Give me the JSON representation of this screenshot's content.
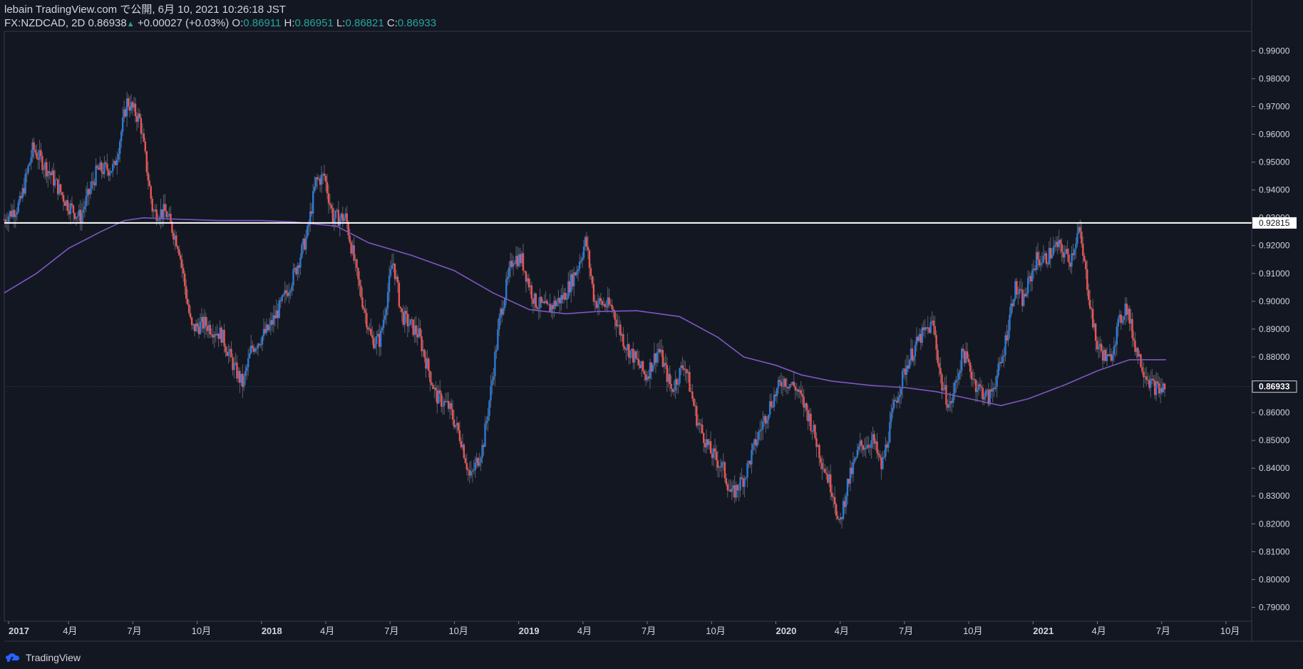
{
  "header": {
    "publisher_line": "lebain TradingView.com で公開, 6月 10, 2021 10:26:18 JST",
    "symbol": "FX:NZDCAD, 2D",
    "last": "0.86938",
    "change": "+0.00027 (+0.03%)",
    "open_label": "O:",
    "open": "0.86911",
    "high_label": "H:",
    "high": "0.86951",
    "low_label": "L:",
    "low": "0.86821",
    "close_label": "C:",
    "close": "0.86933"
  },
  "footer": {
    "brand": "TradingView"
  },
  "colors": {
    "background": "#131722",
    "up": "#2a7ad8",
    "down": "#ef5350",
    "ma": "#7e57c2",
    "hline": "#ffffff",
    "grid": "#2a2e39",
    "text": "#d1d4dc"
  },
  "chart_data": {
    "type": "candlestick",
    "title": "FX:NZDCAD, 2D",
    "ylim": [
      0.785,
      0.997
    ],
    "yticks": [
      "0.99000",
      "0.98000",
      "0.97000",
      "0.96000",
      "0.95000",
      "0.94000",
      "0.93000",
      "0.92000",
      "0.91000",
      "0.90000",
      "0.89000",
      "0.88000",
      "0.87000",
      "0.86000",
      "0.85000",
      "0.84000",
      "0.83000",
      "0.82000",
      "0.81000",
      "0.80000",
      "0.79000"
    ],
    "x_range_months": [
      0.0,
      58.2
    ],
    "xticks": [
      {
        "label": "2017",
        "m": 0.2,
        "bold": true
      },
      {
        "label": "4月",
        "m": 3
      },
      {
        "label": "7月",
        "m": 6
      },
      {
        "label": "10月",
        "m": 9
      },
      {
        "label": "2018",
        "m": 12,
        "bold": true
      },
      {
        "label": "4月",
        "m": 15
      },
      {
        "label": "7月",
        "m": 18
      },
      {
        "label": "10月",
        "m": 21
      },
      {
        "label": "2019",
        "m": 24,
        "bold": true
      },
      {
        "label": "4月",
        "m": 27
      },
      {
        "label": "7月",
        "m": 30
      },
      {
        "label": "10月",
        "m": 33
      },
      {
        "label": "2020",
        "m": 36,
        "bold": true
      },
      {
        "label": "4月",
        "m": 39
      },
      {
        "label": "7月",
        "m": 42
      },
      {
        "label": "10月",
        "m": 45
      },
      {
        "label": "2021",
        "m": 48,
        "bold": true
      },
      {
        "label": "4月",
        "m": 51
      },
      {
        "label": "7月",
        "m": 54
      },
      {
        "label": "10月",
        "m": 57
      }
    ],
    "price_path": [
      [
        0.0,
        0.929
      ],
      [
        0.8,
        0.935
      ],
      [
        1.4,
        0.955
      ],
      [
        2.2,
        0.946
      ],
      [
        3.0,
        0.935
      ],
      [
        3.6,
        0.93
      ],
      [
        4.4,
        0.947
      ],
      [
        5.2,
        0.948
      ],
      [
        5.8,
        0.972
      ],
      [
        6.4,
        0.965
      ],
      [
        7.0,
        0.932
      ],
      [
        7.6,
        0.932
      ],
      [
        8.2,
        0.92
      ],
      [
        8.8,
        0.89
      ],
      [
        9.4,
        0.892
      ],
      [
        10.2,
        0.888
      ],
      [
        10.8,
        0.876
      ],
      [
        11.2,
        0.87
      ],
      [
        11.6,
        0.883
      ],
      [
        12.4,
        0.89
      ],
      [
        13.0,
        0.899
      ],
      [
        13.6,
        0.91
      ],
      [
        14.2,
        0.924
      ],
      [
        14.6,
        0.943
      ],
      [
        15.0,
        0.945
      ],
      [
        15.4,
        0.93
      ],
      [
        16.0,
        0.93
      ],
      [
        16.6,
        0.906
      ],
      [
        17.2,
        0.886
      ],
      [
        17.6,
        0.886
      ],
      [
        18.2,
        0.915
      ],
      [
        18.6,
        0.895
      ],
      [
        19.4,
        0.888
      ],
      [
        20.2,
        0.866
      ],
      [
        20.8,
        0.862
      ],
      [
        21.4,
        0.85
      ],
      [
        21.8,
        0.836
      ],
      [
        22.4,
        0.848
      ],
      [
        22.8,
        0.87
      ],
      [
        23.2,
        0.895
      ],
      [
        23.8,
        0.916
      ],
      [
        24.2,
        0.915
      ],
      [
        24.8,
        0.9
      ],
      [
        25.4,
        0.897
      ],
      [
        26.2,
        0.902
      ],
      [
        26.8,
        0.912
      ],
      [
        27.2,
        0.922
      ],
      [
        27.6,
        0.9
      ],
      [
        28.4,
        0.898
      ],
      [
        29.0,
        0.885
      ],
      [
        29.6,
        0.878
      ],
      [
        30.0,
        0.873
      ],
      [
        30.6,
        0.883
      ],
      [
        31.2,
        0.868
      ],
      [
        31.8,
        0.878
      ],
      [
        32.4,
        0.857
      ],
      [
        33.0,
        0.846
      ],
      [
        33.6,
        0.84
      ],
      [
        34.0,
        0.83
      ],
      [
        34.6,
        0.837
      ],
      [
        35.2,
        0.851
      ],
      [
        35.8,
        0.863
      ],
      [
        36.4,
        0.872
      ],
      [
        37.0,
        0.869
      ],
      [
        37.6,
        0.859
      ],
      [
        38.2,
        0.843
      ],
      [
        38.8,
        0.83
      ],
      [
        39.0,
        0.818
      ],
      [
        39.4,
        0.834
      ],
      [
        40.0,
        0.848
      ],
      [
        40.6,
        0.85
      ],
      [
        41.0,
        0.84
      ],
      [
        41.6,
        0.863
      ],
      [
        42.2,
        0.878
      ],
      [
        42.8,
        0.887
      ],
      [
        43.4,
        0.892
      ],
      [
        43.8,
        0.87
      ],
      [
        44.2,
        0.862
      ],
      [
        44.8,
        0.882
      ],
      [
        45.4,
        0.87
      ],
      [
        46.0,
        0.865
      ],
      [
        46.6,
        0.878
      ],
      [
        47.2,
        0.905
      ],
      [
        47.6,
        0.9
      ],
      [
        48.2,
        0.915
      ],
      [
        48.6,
        0.915
      ],
      [
        49.2,
        0.92
      ],
      [
        49.8,
        0.915
      ],
      [
        50.2,
        0.926
      ],
      [
        50.6,
        0.906
      ],
      [
        51.0,
        0.885
      ],
      [
        51.6,
        0.878
      ],
      [
        52.0,
        0.89
      ],
      [
        52.4,
        0.899
      ],
      [
        52.8,
        0.885
      ],
      [
        53.2,
        0.876
      ],
      [
        53.6,
        0.87
      ],
      [
        54.0,
        0.868
      ],
      [
        54.2,
        0.8693
      ]
    ],
    "ma_path": [
      [
        0.0,
        0.903
      ],
      [
        1.5,
        0.91
      ],
      [
        3.0,
        0.919
      ],
      [
        4.5,
        0.925
      ],
      [
        5.6,
        0.929
      ],
      [
        6.5,
        0.93
      ],
      [
        8.0,
        0.9295
      ],
      [
        10.0,
        0.929
      ],
      [
        12.0,
        0.929
      ],
      [
        13.5,
        0.9285
      ],
      [
        15.5,
        0.927
      ],
      [
        17.0,
        0.921
      ],
      [
        19.0,
        0.9165
      ],
      [
        21.0,
        0.911
      ],
      [
        22.8,
        0.903
      ],
      [
        24.5,
        0.897
      ],
      [
        26.2,
        0.8955
      ],
      [
        27.6,
        0.8963
      ],
      [
        29.5,
        0.8966
      ],
      [
        31.5,
        0.8945
      ],
      [
        33.3,
        0.887
      ],
      [
        34.5,
        0.88
      ],
      [
        36.0,
        0.877
      ],
      [
        37.2,
        0.8735
      ],
      [
        38.6,
        0.8713
      ],
      [
        40.5,
        0.8697
      ],
      [
        42.0,
        0.869
      ],
      [
        43.5,
        0.8675
      ],
      [
        45.0,
        0.865
      ],
      [
        46.5,
        0.8625
      ],
      [
        47.8,
        0.865
      ],
      [
        49.5,
        0.87
      ],
      [
        51.0,
        0.875
      ],
      [
        52.5,
        0.879
      ],
      [
        54.2,
        0.879
      ]
    ],
    "hline": {
      "value": 0.92815,
      "label": "0.92815"
    },
    "last_price_label": "0.86933",
    "last_price": 0.86933
  }
}
